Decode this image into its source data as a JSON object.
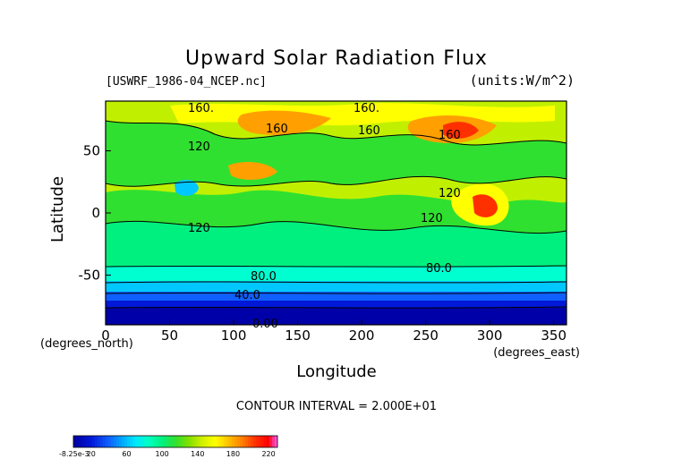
{
  "chart_data": {
    "type": "heatmap",
    "title": "Upward Solar Radiation Flux",
    "file_label": "[USWRF_1986-04_NCEP.nc]",
    "units_label": "(units:W/m^2)",
    "xlabel": "Longitude",
    "ylabel": "Latitude",
    "x_unit_label": "(degrees_east)",
    "y_unit_label": "(degrees_north)",
    "xlim": [
      0,
      360
    ],
    "ylim": [
      -90,
      90
    ],
    "x_ticks": [
      "0",
      "50",
      "100",
      "150",
      "200",
      "250",
      "300",
      "350"
    ],
    "y_ticks": [
      "-50",
      "0",
      "50"
    ],
    "contour_interval_label": "CONTOUR INTERVAL = 2.000E+01",
    "contour_labels": [
      "160.",
      "160.",
      "160",
      "160",
      "160",
      "120",
      "120",
      "120",
      "120",
      "80.0",
      "80.0",
      "40.0",
      "0.00"
    ],
    "colorbar_ticks": [
      "-8.25e-3",
      "20",
      "60",
      "100",
      "140",
      "180",
      "220"
    ],
    "colorbar_range": [
      0,
      230
    ],
    "colors": {
      "band_0": "#0000a8",
      "band_20": "#0018d8",
      "band_40": "#1060ff",
      "band_60": "#00c8ff",
      "band_80": "#00ffd0",
      "band_100": "#00f080",
      "band_120": "#30e030",
      "band_140": "#c0f000",
      "band_160": "#ffff00",
      "band_180": "#ffa000",
      "band_200": "#ff3000",
      "band_220": "#ff60ff"
    }
  }
}
